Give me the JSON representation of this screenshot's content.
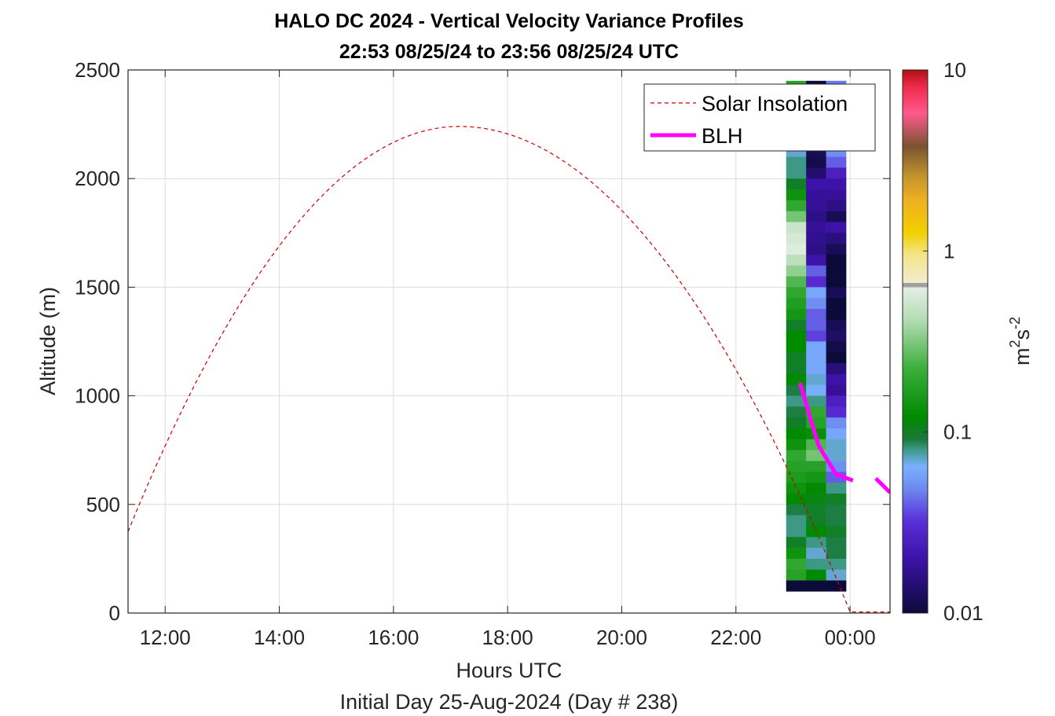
{
  "chart_data": {
    "type": "heatmap",
    "title_line1": "HALO DC 2024 - Vertical Velocity Variance Profiles",
    "title_line2": "22:53 08/25/24 to 23:56 08/25/24  UTC",
    "xlabel": "Hours UTC",
    "xlabel2": "Initial Day 25-Aug-2024 (Day # 238)",
    "ylabel": "Altitude (m)",
    "x_range_hours": [
      11.35,
      24.7
    ],
    "ylim": [
      0,
      2500
    ],
    "x_ticks": [
      {
        "h": 12,
        "label": "12:00"
      },
      {
        "h": 14,
        "label": "14:00"
      },
      {
        "h": 16,
        "label": "16:00"
      },
      {
        "h": 18,
        "label": "18:00"
      },
      {
        "h": 20,
        "label": "20:00"
      },
      {
        "h": 22,
        "label": "22:00"
      },
      {
        "h": 24,
        "label": "00:00"
      }
    ],
    "y_ticks": [
      0,
      500,
      1000,
      1500,
      2000,
      2500
    ],
    "y_tick_labels": [
      "0",
      "500",
      "1000",
      "1500",
      "2000",
      "2500"
    ],
    "grid": true,
    "legend_position": "top-right",
    "legend": [
      {
        "name": "Solar Insolation",
        "color": "#cc0000",
        "style": "dashed"
      },
      {
        "name": "BLH",
        "color": "#ff00ff",
        "style": "solid"
      }
    ],
    "colorbar": {
      "scale": "log",
      "range": [
        0.01,
        10
      ],
      "ticks": [
        0.01,
        0.1,
        1,
        10
      ],
      "tick_labels": [
        "0.01",
        "0.1",
        "1",
        "10"
      ],
      "label_base": "m",
      "label_exp1": "2",
      "label_mid": "s",
      "label_exp2": "-2"
    },
    "solar_insolation": {
      "start_h": 11.35,
      "peak_h": 17.15,
      "end_h": 24.0,
      "start_alt": 375,
      "peak_alt": 2240,
      "zero_alt": 5
    },
    "blh": [
      {
        "h": 23.12,
        "alt": 1060
      },
      {
        "h": 23.3,
        "alt": 900
      },
      {
        "h": 23.45,
        "alt": 770
      },
      {
        "h": 23.75,
        "alt": 640
      },
      {
        "h": 24.05,
        "alt": 610
      },
      {
        "h": 24.45,
        "alt": 620
      },
      {
        "h": 24.7,
        "alt": 555
      }
    ],
    "heatmap": {
      "bin_height_m": 50,
      "start_alt_m": 100,
      "columns": [
        {
          "start_h": 22.88,
          "end_h": 23.23,
          "values_top_down": [
            0.18,
            0.08,
            0.07,
            0.09,
            0.08,
            0.07,
            0.07,
            0.08,
            0.08,
            0.1,
            0.14,
            0.2,
            0.3,
            0.5,
            0.55,
            0.6,
            0.45,
            0.35,
            0.25,
            0.2,
            0.17,
            0.15,
            0.1,
            0.12,
            0.12,
            0.1,
            0.1,
            0.12,
            0.09,
            0.08,
            0.09,
            0.1,
            0.12,
            0.14,
            0.2,
            0.18,
            0.16,
            0.14,
            0.12,
            0.09,
            0.08,
            0.08,
            0.1,
            0.14,
            0.2,
            0.18,
            0.009
          ]
        },
        {
          "start_h": 23.23,
          "end_h": 23.58,
          "values_top_down": [
            0.01,
            0.01,
            0.009,
            0.01,
            0.01,
            0.012,
            0.012,
            0.011,
            0.014,
            0.02,
            0.018,
            0.018,
            0.016,
            0.018,
            0.017,
            0.016,
            0.02,
            0.04,
            0.03,
            0.06,
            0.05,
            0.04,
            0.04,
            0.035,
            0.06,
            0.06,
            0.06,
            0.07,
            0.065,
            0.08,
            0.2,
            0.18,
            0.13,
            0.25,
            0.3,
            0.18,
            0.15,
            0.12,
            0.11,
            0.1,
            0.1,
            0.12,
            0.08,
            0.07,
            0.08,
            0.12,
            0.009
          ]
        },
        {
          "start_h": 23.58,
          "end_h": 23.93,
          "values_top_down": [
            0.045,
            0.05,
            0.06,
            0.07,
            0.055,
            0.055,
            0.05,
            0.04,
            0.025,
            0.02,
            0.018,
            0.016,
            0.012,
            0.02,
            0.015,
            0.012,
            0.01,
            0.01,
            0.01,
            0.012,
            0.01,
            0.01,
            0.012,
            0.013,
            0.011,
            0.01,
            0.015,
            0.02,
            0.018,
            0.025,
            0.03,
            0.05,
            0.06,
            0.07,
            0.07,
            0.05,
            0.04,
            0.08,
            0.1,
            0.09,
            0.09,
            0.1,
            0.09,
            0.09,
            0.08,
            0.07,
            0.009
          ]
        }
      ]
    }
  }
}
